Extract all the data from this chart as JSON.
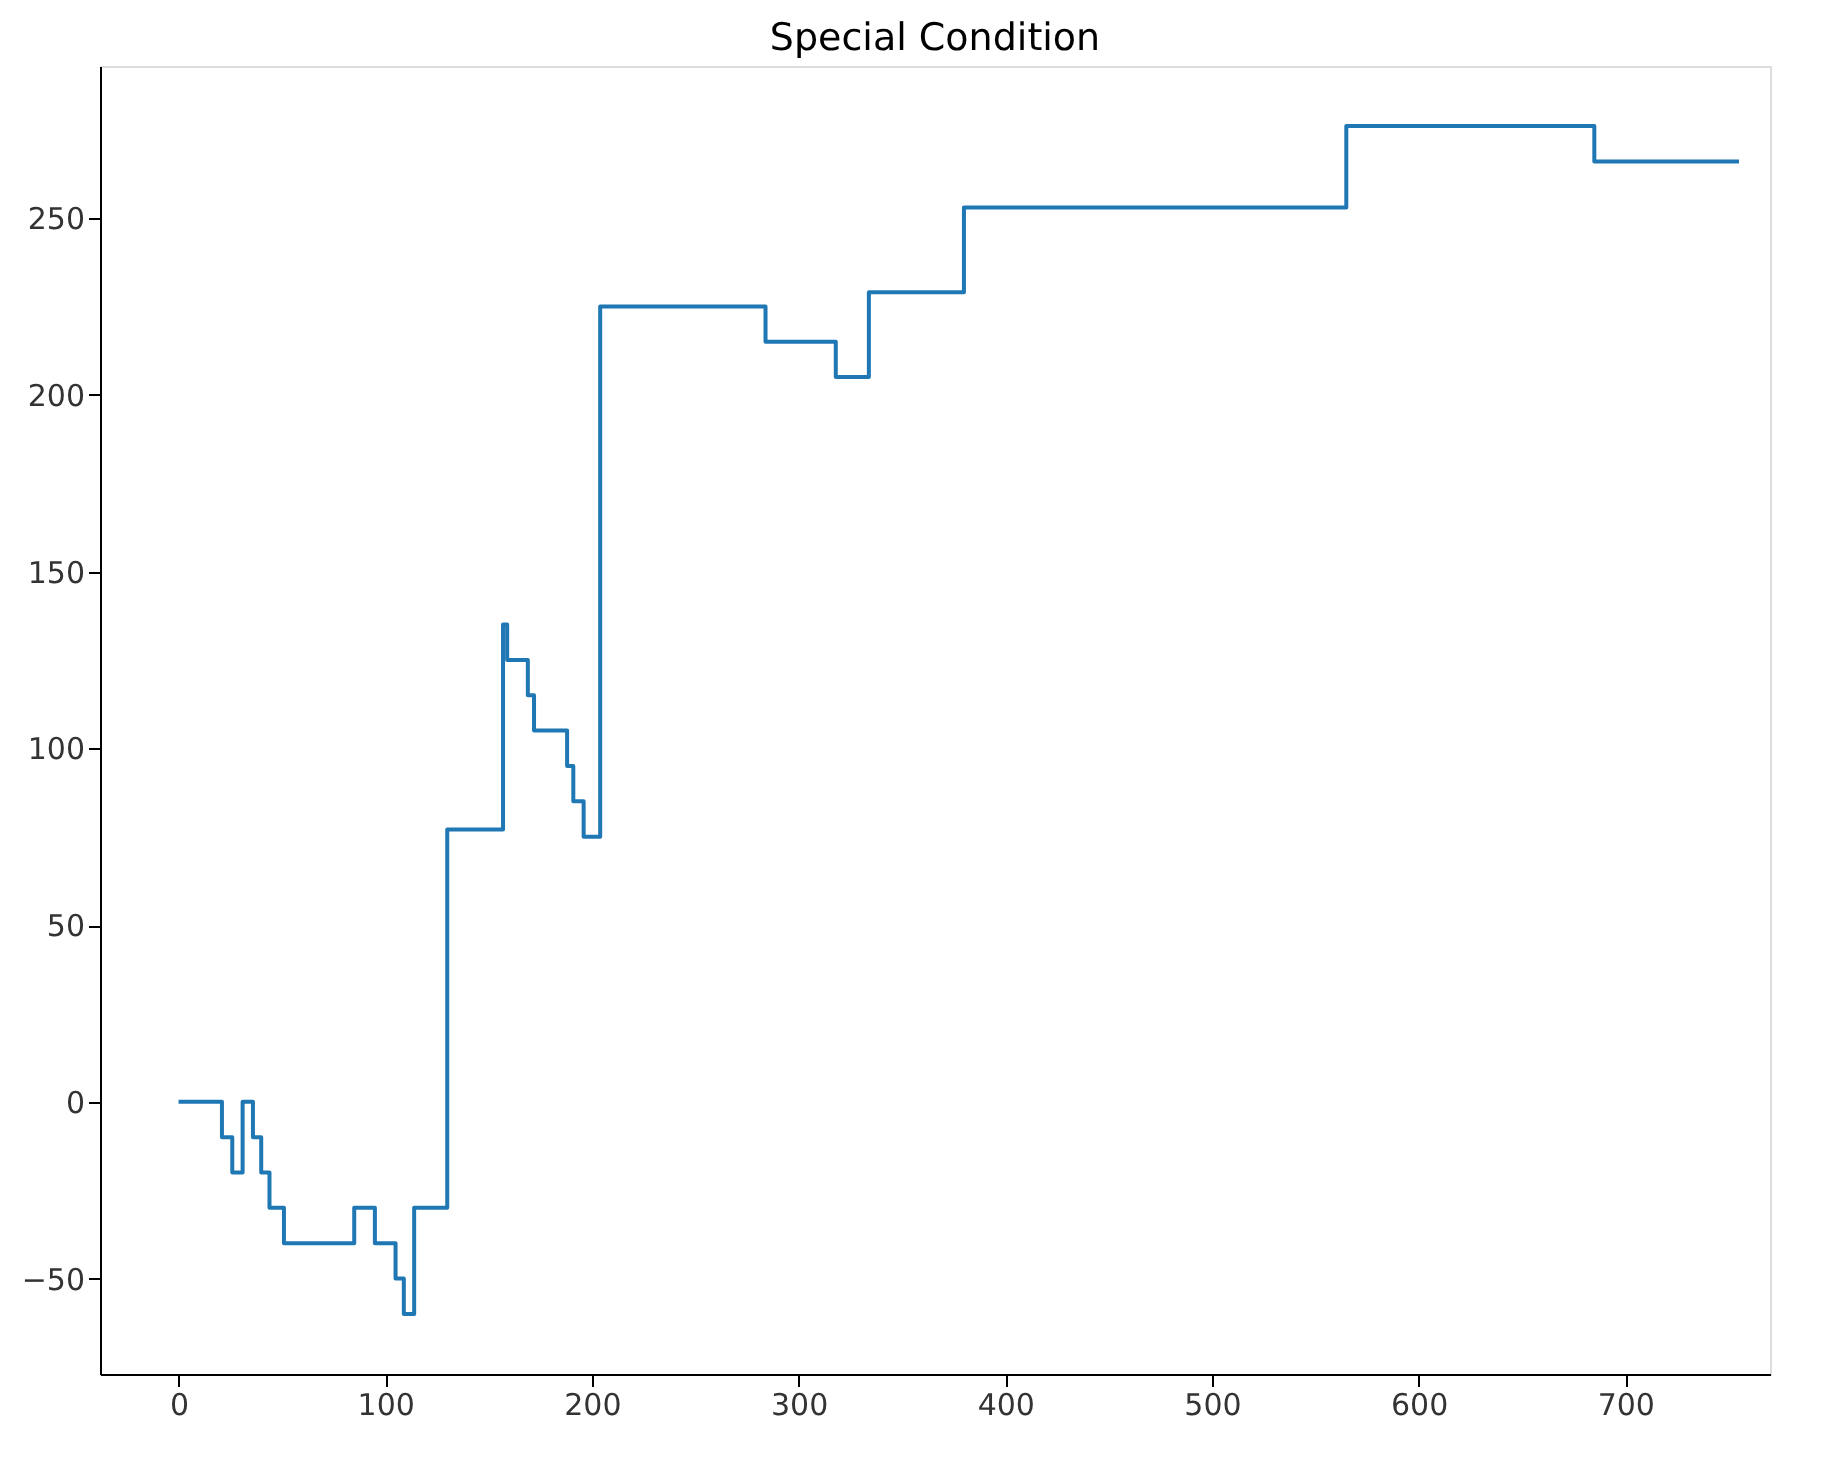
{
  "chart_data": {
    "type": "step",
    "title": "Special Condition",
    "x": [
      0,
      21,
      26,
      31,
      36,
      40,
      44,
      51,
      85,
      95,
      105,
      109,
      114,
      130,
      157,
      159,
      169,
      172,
      188,
      191,
      196,
      204,
      284,
      318,
      334,
      380,
      565,
      685,
      755
    ],
    "series": [
      {
        "color": "#1f77b4",
        "values": [
          0,
          -10,
          -20,
          0,
          -10,
          -20,
          -30,
          -40,
          -30,
          -40,
          -50,
          -60,
          -30,
          77,
          135,
          125,
          115,
          105,
          95,
          85,
          75,
          225,
          215,
          205,
          229,
          253,
          276,
          266,
          266
        ]
      }
    ],
    "xlim": [
      -38,
      770
    ],
    "ylim": [
      -77,
      293
    ],
    "xticks": [
      0,
      100,
      200,
      300,
      400,
      500,
      600,
      700
    ],
    "yticks": [
      -50,
      0,
      50,
      100,
      150,
      200,
      250
    ],
    "grid": false,
    "line_style": "solid",
    "marker": "none"
  }
}
